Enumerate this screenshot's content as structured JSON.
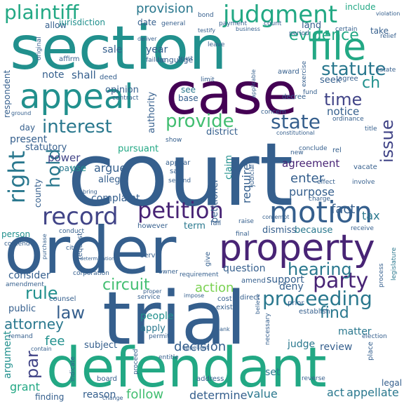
{
  "palette": [
    "#440154",
    "#482475",
    "#414487",
    "#355f8d",
    "#2a788e",
    "#21908d",
    "#22a884",
    "#42be71",
    "#7ad151",
    "#bddf26",
    "#fde725"
  ],
  "words": [
    {
      "t": "court",
      "c": 3
    },
    {
      "t": "order",
      "c": 3
    },
    {
      "t": "trial",
      "c": 3
    },
    {
      "t": "defendant",
      "c": 6
    },
    {
      "t": "section",
      "c": 5
    },
    {
      "t": "case",
      "c": 0
    },
    {
      "t": "property",
      "c": 1
    },
    {
      "t": "appeal",
      "c": 5
    },
    {
      "t": "file",
      "c": 6
    },
    {
      "t": "motion",
      "c": 3
    },
    {
      "t": "judgment",
      "c": 6
    },
    {
      "t": "plaintiff",
      "c": 6
    },
    {
      "t": "petition",
      "c": 1
    },
    {
      "t": "record",
      "c": 2
    },
    {
      "t": "provide",
      "c": 7
    },
    {
      "t": "state",
      "c": 3
    },
    {
      "t": "interest",
      "c": 4
    },
    {
      "t": "statute",
      "c": 4
    },
    {
      "t": "party",
      "c": 1
    },
    {
      "t": "proceeding",
      "c": 4
    },
    {
      "t": "evidence",
      "c": 6
    },
    {
      "t": "hearing",
      "c": 4
    },
    {
      "t": "right",
      "c": 4
    },
    {
      "t": "hold",
      "c": 4
    },
    {
      "t": "time",
      "c": 2
    },
    {
      "t": "issue",
      "c": 2
    },
    {
      "t": "circuit",
      "c": 7
    },
    {
      "t": "rule",
      "c": 5
    },
    {
      "t": "law",
      "c": 3
    },
    {
      "t": "find",
      "c": 4
    },
    {
      "t": "attorney",
      "c": 4
    },
    {
      "t": "action",
      "c": 8
    },
    {
      "t": "ch",
      "c": 5
    },
    {
      "t": "par",
      "c": 2
    },
    {
      "t": "provision",
      "c": 4
    },
    {
      "t": "require",
      "c": 3
    },
    {
      "t": "petitioner",
      "c": 3
    },
    {
      "t": "enter",
      "c": 3
    },
    {
      "t": "decision",
      "c": 3
    },
    {
      "t": "fee",
      "c": 5
    },
    {
      "t": "argument",
      "c": 5
    },
    {
      "t": "grant",
      "c": 6
    },
    {
      "t": "follow",
      "c": 7
    },
    {
      "t": "appellate",
      "c": 4
    },
    {
      "t": "act",
      "c": 4
    },
    {
      "t": "determine",
      "c": 3
    },
    {
      "t": "value",
      "c": 4
    },
    {
      "t": "reason",
      "c": 3
    },
    {
      "t": "finding",
      "c": 3
    },
    {
      "t": "fact",
      "c": 3
    },
    {
      "t": "tax",
      "c": 4
    },
    {
      "t": "purpose",
      "c": 3
    },
    {
      "t": "agreement",
      "c": 1
    },
    {
      "t": "notice",
      "c": 3
    },
    {
      "t": "complaint",
      "c": 3
    },
    {
      "t": "argue",
      "c": 3
    },
    {
      "t": "power",
      "c": 2
    },
    {
      "t": "pursuant",
      "c": 6
    },
    {
      "t": "authority",
      "c": 3
    },
    {
      "t": "opinion",
      "c": 3
    },
    {
      "t": "note",
      "c": 3
    },
    {
      "t": "shall",
      "c": 3
    },
    {
      "t": "sale",
      "c": 3
    },
    {
      "t": "year",
      "c": 3
    },
    {
      "t": "present",
      "c": 3
    },
    {
      "t": "statutory",
      "c": 3
    },
    {
      "t": "use",
      "c": 5
    },
    {
      "t": "pay",
      "c": 4
    },
    {
      "t": "allege",
      "c": 3
    },
    {
      "t": "district",
      "c": 3
    },
    {
      "t": "claim",
      "c": 5
    },
    {
      "t": "term",
      "c": 4
    },
    {
      "t": "dismiss",
      "c": 3
    },
    {
      "t": "because",
      "c": 4
    },
    {
      "t": "question",
      "c": 3
    },
    {
      "t": "consider",
      "c": 3
    },
    {
      "t": "deny",
      "c": 3
    },
    {
      "t": "support",
      "c": 3
    },
    {
      "t": "review",
      "c": 3
    },
    {
      "t": "matter",
      "c": 4
    },
    {
      "t": "judge",
      "c": 4
    },
    {
      "t": "subject",
      "c": 3
    },
    {
      "t": "people",
      "c": 5
    },
    {
      "t": "apply",
      "c": 4
    },
    {
      "t": "public",
      "c": 3
    },
    {
      "t": "date",
      "c": 3
    },
    {
      "t": "land",
      "c": 3
    },
    {
      "t": "include",
      "c": 6
    },
    {
      "t": "take",
      "c": 3
    },
    {
      "t": "allow",
      "c": 3
    },
    {
      "t": "language",
      "c": 3
    },
    {
      "t": "seek",
      "c": 3
    },
    {
      "t": "see",
      "c": 4
    },
    {
      "t": "base",
      "c": 3
    },
    {
      "t": "county",
      "c": 3
    },
    {
      "t": "person",
      "c": 5
    },
    {
      "t": "respondent",
      "c": 3
    },
    {
      "t": "set",
      "c": 4
    },
    {
      "t": "day",
      "c": 3
    },
    {
      "t": "jurisdiction",
      "c": 5
    },
    {
      "t": "bond",
      "c": 3
    },
    {
      "t": "estate",
      "c": 3
    },
    {
      "t": "general",
      "c": 3
    },
    {
      "t": "certain",
      "c": 3
    },
    {
      "t": "award",
      "c": 3
    },
    {
      "t": "agree",
      "c": 3
    },
    {
      "t": "exercise",
      "c": 3
    },
    {
      "t": "ordinance",
      "c": 3
    },
    {
      "t": "concern",
      "c": 3
    },
    {
      "t": "conclude",
      "c": 3
    },
    {
      "t": "vacate",
      "c": 3
    },
    {
      "t": "involve",
      "c": 3
    },
    {
      "t": "contempt",
      "c": 3
    },
    {
      "t": "receive",
      "c": 3
    },
    {
      "t": "legislature",
      "c": 4
    },
    {
      "t": "process",
      "c": 3
    },
    {
      "t": "prior",
      "c": 3
    },
    {
      "t": "establish",
      "c": 3
    },
    {
      "t": "cost",
      "c": 3
    },
    {
      "t": "exist",
      "c": 3
    },
    {
      "t": "direct",
      "c": 3
    },
    {
      "t": "amend",
      "c": 3
    },
    {
      "t": "requirement",
      "c": 3
    },
    {
      "t": "owner",
      "c": 3
    },
    {
      "t": "corporation",
      "c": 3
    },
    {
      "t": "request",
      "c": 3
    },
    {
      "t": "give",
      "c": 3
    },
    {
      "t": "serve",
      "c": 3
    },
    {
      "t": "however",
      "c": 3
    },
    {
      "t": "counsel",
      "c": 3
    },
    {
      "t": "board",
      "c": 3
    },
    {
      "t": "address",
      "c": 3
    },
    {
      "t": "place",
      "c": 3
    },
    {
      "t": "legal",
      "c": 3
    },
    {
      "t": "second",
      "c": 3
    },
    {
      "t": "say",
      "c": 3
    },
    {
      "t": "appear",
      "c": 3
    },
    {
      "t": "show",
      "c": 3
    },
    {
      "t": "judicial",
      "c": 3
    },
    {
      "t": "charge",
      "c": 3
    },
    {
      "t": "effect",
      "c": 3
    },
    {
      "t": "contract",
      "c": 3
    },
    {
      "t": "deed",
      "c": 3
    },
    {
      "t": "limit",
      "c": 3
    },
    {
      "t": "decree",
      "c": 3
    },
    {
      "t": "fund",
      "c": 3
    },
    {
      "t": "applicable",
      "c": 3
    },
    {
      "t": "affirm",
      "c": 3
    },
    {
      "t": "failure",
      "c": 3
    },
    {
      "t": "original",
      "c": 3
    },
    {
      "t": "trust",
      "c": 3
    },
    {
      "t": "leave",
      "c": 3
    },
    {
      "t": "payment",
      "c": 3
    },
    {
      "t": "business",
      "c": 3
    },
    {
      "t": "count",
      "c": 3
    },
    {
      "t": "period",
      "c": 3
    },
    {
      "t": "relief",
      "c": 3
    },
    {
      "t": "violation",
      "c": 3
    },
    {
      "t": "testify",
      "c": 3
    },
    {
      "t": "deliver",
      "c": 3
    },
    {
      "t": "constitutional",
      "c": 3
    },
    {
      "t": "ground",
      "c": 3
    },
    {
      "t": "bring",
      "c": 3
    },
    {
      "t": "raise",
      "c": 3
    },
    {
      "t": "fail",
      "c": 3
    },
    {
      "t": "final",
      "c": 3
    },
    {
      "t": "conduct",
      "c": 3
    },
    {
      "t": "contend",
      "c": 3
    },
    {
      "t": "city",
      "c": 3
    },
    {
      "t": "purchase",
      "c": 3
    },
    {
      "t": "amendment",
      "c": 3
    },
    {
      "t": "remand",
      "c": 3
    },
    {
      "t": "contain",
      "c": 3
    },
    {
      "t": "proper",
      "c": 3
    },
    {
      "t": "service",
      "c": 3
    },
    {
      "t": "impose",
      "c": 3
    },
    {
      "t": "permit",
      "c": 3
    },
    {
      "t": "entitle",
      "c": 3
    },
    {
      "t": "proceed",
      "c": 3
    },
    {
      "t": "indicate",
      "c": 3
    },
    {
      "t": "appellant",
      "c": 3
    },
    {
      "t": "bank",
      "c": 3
    },
    {
      "t": "believe",
      "c": 3
    },
    {
      "t": "determination",
      "c": 3
    },
    {
      "t": "title",
      "c": 3
    },
    {
      "t": "new",
      "c": 3
    },
    {
      "t": "rel",
      "c": 3
    },
    {
      "t": "election",
      "c": 3
    },
    {
      "t": "reverse",
      "c": 3
    },
    {
      "t": "change",
      "c": 3
    },
    {
      "t": "necessary",
      "c": 3
    }
  ]
}
